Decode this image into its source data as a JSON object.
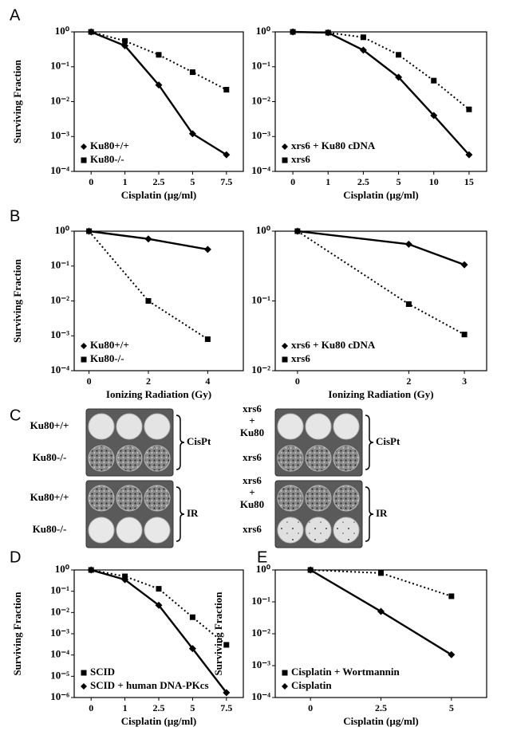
{
  "chart_data": [
    {
      "type": "line",
      "panel_label": "A",
      "y_label": "Surviving Fraction",
      "x_label": "Cisplatin (µg/ml)",
      "categories": [
        "0",
        "1",
        "2.5",
        "5",
        "7.5"
      ],
      "log_y": true,
      "ylim": [
        0.0001,
        1
      ],
      "yticks": [
        {
          "value": 0.0001,
          "label": "10⁻⁴"
        },
        {
          "value": 0.001,
          "label": "10⁻³"
        },
        {
          "value": 0.01,
          "label": "10⁻²"
        },
        {
          "value": 0.1,
          "label": "10⁻¹"
        },
        {
          "value": 1,
          "label": "10⁰"
        }
      ],
      "legend": "lower left",
      "series": [
        {
          "name": "Ku80+/+",
          "color": "#000000",
          "marker": "diamond",
          "line_style": "solid",
          "values": [
            1,
            0.4,
            0.03,
            0.0012,
            0.0003
          ]
        },
        {
          "name": "Ku80-/-",
          "color": "#000000",
          "marker": "square",
          "line_style": "dotted",
          "values": [
            1,
            0.55,
            0.22,
            0.07,
            0.022
          ]
        }
      ]
    },
    {
      "type": "line",
      "x_label": "Cisplatin (µg/ml)",
      "categories": [
        "0",
        "1",
        "2.5",
        "5",
        "10",
        "15"
      ],
      "log_y": true,
      "ylim": [
        0.0001,
        1
      ],
      "yticks": [
        {
          "value": 0.0001,
          "label": "10⁻⁴"
        },
        {
          "value": 0.001,
          "label": "10⁻³"
        },
        {
          "value": 0.01,
          "label": "10⁻²"
        },
        {
          "value": 0.1,
          "label": "10⁻¹"
        },
        {
          "value": 1,
          "label": "10⁰"
        }
      ],
      "legend": "lower left",
      "series": [
        {
          "name": "xrs6 + Ku80 cDNA",
          "color": "#000000",
          "marker": "diamond",
          "line_style": "solid",
          "values": [
            1,
            0.95,
            0.3,
            0.05,
            0.004,
            0.0003
          ]
        },
        {
          "name": "xrs6",
          "color": "#000000",
          "marker": "square",
          "line_style": "dotted",
          "values": [
            1,
            0.95,
            0.7,
            0.22,
            0.04,
            0.006
          ]
        }
      ]
    },
    {
      "type": "line",
      "panel_label": "B",
      "y_label": "Surviving Fraction",
      "x_label": "Ionizing Radiation (Gy)",
      "x": [
        0,
        2,
        4
      ],
      "xlim": [
        -0.5,
        5.2
      ],
      "xticks": [
        0,
        2,
        4
      ],
      "log_y": true,
      "ylim": [
        0.0001,
        1
      ],
      "yticks": [
        {
          "value": 0.0001,
          "label": "10⁻⁴"
        },
        {
          "value": 0.001,
          "label": "10⁻³"
        },
        {
          "value": 0.01,
          "label": "10⁻²"
        },
        {
          "value": 0.1,
          "label": "10⁻¹"
        },
        {
          "value": 1,
          "label": "10⁰"
        }
      ],
      "legend": "lower left",
      "series": [
        {
          "name": "Ku80+/+",
          "color": "#000000",
          "marker": "diamond",
          "line_style": "solid",
          "values": [
            1,
            0.6,
            0.3
          ]
        },
        {
          "name": "Ku80-/-",
          "color": "#000000",
          "marker": "square",
          "line_style": "dotted",
          "values": [
            1,
            0.01,
            0.0008
          ]
        }
      ]
    },
    {
      "type": "line",
      "x_label": "Ionizing Radiation (Gy)",
      "x": [
        0,
        2,
        3
      ],
      "xlim": [
        -0.4,
        3.4
      ],
      "xticks": [
        0,
        2,
        3
      ],
      "log_y": true,
      "ylim": [
        0.01,
        1
      ],
      "yticks": [
        {
          "value": 0.01,
          "label": "10⁻²"
        },
        {
          "value": 0.1,
          "label": "10⁻¹"
        },
        {
          "value": 1,
          "label": "10⁰"
        }
      ],
      "legend": "lower left",
      "series": [
        {
          "name": "xrs6 + Ku80 cDNA",
          "color": "#000000",
          "marker": "diamond",
          "line_style": "solid",
          "values": [
            1,
            0.65,
            0.33
          ]
        },
        {
          "name": "xrs6",
          "color": "#000000",
          "marker": "square",
          "line_style": "dotted",
          "values": [
            1,
            0.09,
            0.033
          ]
        }
      ]
    },
    {
      "type": "line",
      "panel_label": "D",
      "y_label": "Surviving Fraction",
      "x_label": "Cisplatin (µg/ml)",
      "categories": [
        "0",
        "1",
        "2.5",
        "5",
        "7.5"
      ],
      "log_y": true,
      "ylim": [
        1e-06,
        1
      ],
      "yticks": [
        {
          "value": 1e-06,
          "label": "10⁻⁶"
        },
        {
          "value": 1e-05,
          "label": "10⁻⁵"
        },
        {
          "value": 0.0001,
          "label": "10⁻⁴"
        },
        {
          "value": 0.001,
          "label": "10⁻³"
        },
        {
          "value": 0.01,
          "label": "10⁻²"
        },
        {
          "value": 0.1,
          "label": "10⁻¹"
        },
        {
          "value": 1,
          "label": "10⁰"
        }
      ],
      "legend": "lower left",
      "series": [
        {
          "name": "SCID",
          "color": "#000000",
          "marker": "square",
          "line_style": "dotted",
          "values": [
            1,
            0.5,
            0.13,
            0.006,
            0.0003
          ]
        },
        {
          "name": "SCID + human DNA-PKcs",
          "color": "#000000",
          "marker": "diamond",
          "line_style": "solid",
          "values": [
            1,
            0.35,
            0.022,
            0.0002,
            1.7e-06
          ]
        }
      ]
    },
    {
      "type": "line",
      "panel_label": "E",
      "y_label": "Surviving Fraction",
      "x_label": "Cisplatin (µg/ml)",
      "categories": [
        "0",
        "2.5",
        "5"
      ],
      "log_y": true,
      "ylim": [
        0.0001,
        1
      ],
      "yticks": [
        {
          "value": 0.0001,
          "label": "10⁻⁴"
        },
        {
          "value": 0.001,
          "label": "10⁻³"
        },
        {
          "value": 0.01,
          "label": "10⁻²"
        },
        {
          "value": 0.1,
          "label": "10⁻¹"
        },
        {
          "value": 1,
          "label": "10⁰"
        }
      ],
      "legend": "lower left",
      "series": [
        {
          "name": "Cisplatin + Wortmannin",
          "color": "#000000",
          "marker": "square",
          "line_style": "dotted",
          "values": [
            1,
            0.8,
            0.15
          ]
        },
        {
          "name": "Cisplatin",
          "color": "#000000",
          "marker": "diamond",
          "line_style": "solid",
          "values": [
            1,
            0.05,
            0.0022
          ]
        }
      ]
    }
  ],
  "panel_c": {
    "label": "C",
    "left": [
      {
        "rows": [
          [
            "Ku80+/+"
          ],
          [
            "Ku80-/-"
          ]
        ],
        "treatment": "CisPt"
      },
      {
        "rows": [
          [
            "Ku80+/+"
          ],
          [
            "Ku80-/-"
          ]
        ],
        "treatment": "IR"
      }
    ],
    "right": [
      {
        "rows": [
          [
            "xrs6",
            "+",
            "Ku80"
          ],
          [
            "xrs6"
          ]
        ],
        "treatment": "CisPt"
      },
      {
        "rows": [
          [
            "xrs6",
            "+",
            "Ku80"
          ],
          [
            "xrs6"
          ]
        ],
        "treatment": "IR"
      }
    ]
  }
}
